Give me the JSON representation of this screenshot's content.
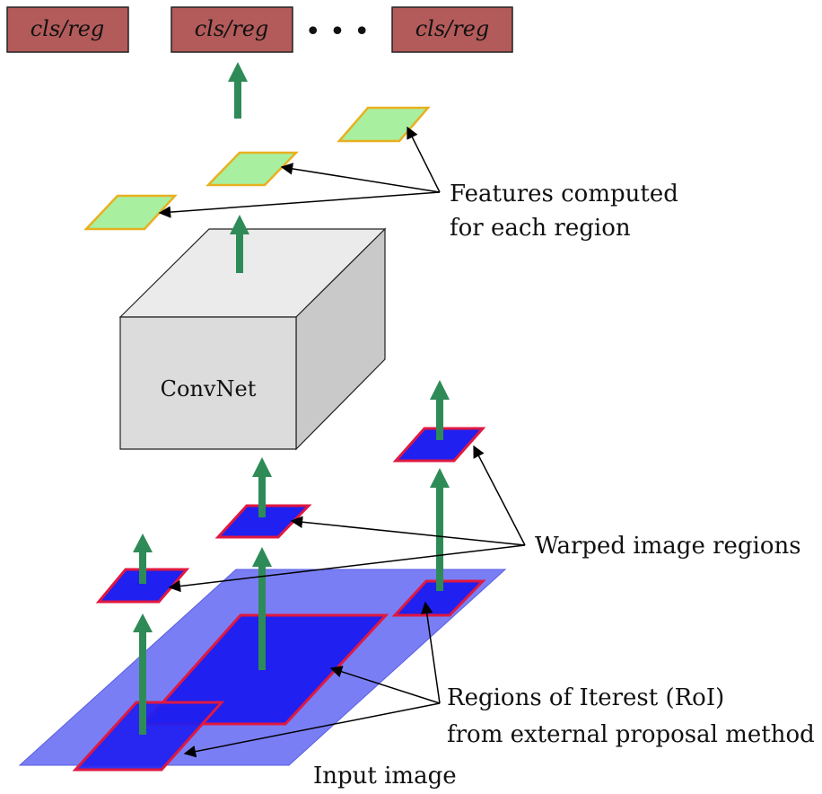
{
  "diagram": {
    "output_boxes": [
      "cls/reg",
      "cls/reg",
      "cls/reg"
    ],
    "ellipsis": "• • •",
    "convnet_label": "ConvNet",
    "labels": {
      "features_line1": "Features computed",
      "features_line2": "for each region",
      "warped": "Warped image regions",
      "roi_line1": "Regions of Iterest (RoI)",
      "roi_line2": "from external proposal method",
      "input_image": "Input image"
    }
  },
  "colors": {
    "output_box_fill": "#b35a5a",
    "arrow_green": "#2e8b57",
    "feature_fill": "#a8f0a0",
    "feature_border": "#e8b020",
    "region_fill": "#2020f0",
    "region_border": "#e01840",
    "input_plane": "#7a7ef5",
    "convnet_face": "#dcdcdc"
  }
}
